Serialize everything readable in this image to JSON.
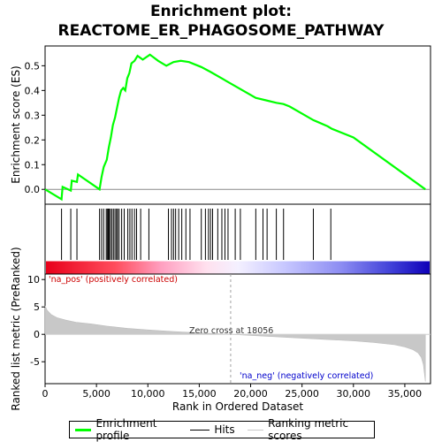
{
  "title_line1": "Enrichment plot:",
  "title_line2": "REACTOME_ER_PHAGOSOME_PATHWAY",
  "colors": {
    "enrichment": "#00ff00",
    "hits": "#000000",
    "ranking": "#c8c8c8",
    "pos_label": "#cc0000",
    "neg_label": "#0000cc",
    "zero_cross": "#a0a0a0"
  },
  "chart_data": {
    "type": "line",
    "top_panel": {
      "ylabel": "Enrichment score (ES)",
      "ylim": [
        -0.06,
        0.58
      ],
      "yticks": [
        0.0,
        0.1,
        0.2,
        0.3,
        0.4,
        0.5
      ],
      "ytick_labels": [
        "0.0",
        "0.1",
        "0.2",
        "0.3",
        "0.4",
        "0.5"
      ],
      "series": [
        {
          "name": "Enrichment profile",
          "x": [
            0,
            1600,
            1700,
            2500,
            2600,
            3100,
            3200,
            5300,
            5500,
            5700,
            6000,
            6200,
            6400,
            6600,
            6800,
            7000,
            7200,
            7400,
            7600,
            7800,
            8000,
            8200,
            8400,
            8700,
            9000,
            9500,
            10200,
            11000,
            11800,
            12500,
            13200,
            14000,
            15200,
            16100,
            20500,
            21500,
            22500,
            23200,
            23800,
            26100,
            26400,
            27500,
            27900,
            30000,
            37000
          ],
          "y": [
            0.0,
            -0.04,
            0.01,
            -0.005,
            0.035,
            0.03,
            0.06,
            0.0,
            0.05,
            0.09,
            0.12,
            0.17,
            0.21,
            0.26,
            0.29,
            0.33,
            0.37,
            0.4,
            0.41,
            0.4,
            0.45,
            0.47,
            0.51,
            0.52,
            0.54,
            0.525,
            0.545,
            0.52,
            0.5,
            0.515,
            0.52,
            0.515,
            0.495,
            0.475,
            0.37,
            0.36,
            0.35,
            0.345,
            0.335,
            0.28,
            0.275,
            0.255,
            0.245,
            0.21,
            0.0
          ]
        }
      ]
    },
    "hits": {
      "name": "Hits",
      "x": [
        1600,
        2500,
        3100,
        5300,
        5500,
        5700,
        5950,
        6050,
        6150,
        6250,
        6350,
        6500,
        6650,
        6800,
        6950,
        7050,
        7200,
        7450,
        7700,
        8050,
        8250,
        8450,
        8700,
        8900,
        9300,
        10100,
        12000,
        12300,
        12500,
        12700,
        13000,
        13300,
        13700,
        14100,
        15200,
        15600,
        15900,
        16100,
        16300,
        16800,
        17200,
        17500,
        17800,
        18500,
        19000,
        20500,
        21200,
        21600,
        22500,
        23200,
        26100,
        27800
      ]
    },
    "ranked_metric": {
      "name": "Ranking metric scores",
      "ylabel": "Ranked list metric (PreRanked)",
      "xlabel": "Rank in Ordered Dataset",
      "ylim": [
        -9,
        11
      ],
      "yticks": [
        10,
        5,
        0,
        -5
      ],
      "ytick_labels": [
        "10",
        "5",
        "0",
        "-5"
      ],
      "x": [
        0,
        200,
        600,
        1200,
        2000,
        3000,
        4500,
        6000,
        8000,
        10000,
        12500,
        15000,
        18056,
        21000,
        24000,
        27000,
        30000,
        32000,
        34000,
        35000,
        35800,
        36300,
        36600,
        36800,
        36900,
        37000
      ],
      "y": [
        5.2,
        4.4,
        3.6,
        3.0,
        2.6,
        2.2,
        1.9,
        1.5,
        1.1,
        0.8,
        0.5,
        0.25,
        0.0,
        -0.3,
        -0.6,
        -0.9,
        -1.2,
        -1.5,
        -1.9,
        -2.3,
        -2.8,
        -3.4,
        -4.2,
        -5.5,
        -7.0,
        -8.6
      ]
    },
    "xlim": [
      0,
      37500
    ],
    "xticks": [
      0,
      5000,
      10000,
      15000,
      20000,
      25000,
      30000,
      35000
    ],
    "xtick_labels": [
      "0",
      "5,000",
      "10,000",
      "15,000",
      "20,000",
      "25,000",
      "30,000",
      "35,000"
    ],
    "zero_cross": 18056,
    "n_genes": 37000,
    "annotations": {
      "pos": "'na_pos' (positively correlated)",
      "neg": "'na_neg' (negatively correlated)",
      "zero_cross": "Zero cross at 18056"
    }
  },
  "legend": [
    {
      "label": "Enrichment profile"
    },
    {
      "label": "Hits"
    },
    {
      "label": "Ranking metric scores"
    }
  ]
}
